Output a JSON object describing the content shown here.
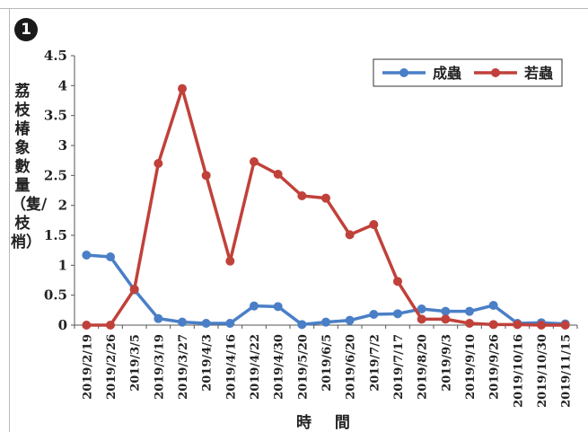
{
  "badge": "1",
  "chart_data": {
    "type": "line",
    "xlabel": "時 間",
    "ylabel": "荔枝椿象數量（隻/枝梢）",
    "ylim": [
      0,
      4.5
    ],
    "yticks": [
      "0",
      "0.5",
      "1",
      "1.5",
      "2",
      "2.5",
      "3",
      "3.5",
      "4",
      "4.5"
    ],
    "grid": false,
    "legend": "top-right",
    "categories": [
      "2019/2/19",
      "2019/2/26",
      "2019/3/5",
      "2019/3/19",
      "2019/3/27",
      "2019/4/3",
      "2019/4/16",
      "2019/4/22",
      "2019/4/30",
      "2019/5/20",
      "2019/6/5",
      "2019/6/20",
      "2019/7/2",
      "2019/7/17",
      "2019/8/20",
      "2019/9/3",
      "2019/9/10",
      "2019/9/26",
      "2019/10/16",
      "2019/10/30",
      "2019/11/15"
    ],
    "series": [
      {
        "name": "成蟲",
        "color": "#4a7fc7",
        "values": [
          1.17,
          1.14,
          0.59,
          0.11,
          0.05,
          0.03,
          0.03,
          0.32,
          0.31,
          0.01,
          0.05,
          0.08,
          0.18,
          0.19,
          0.27,
          0.23,
          0.23,
          0.33,
          0.03,
          0.04,
          0.02
        ]
      },
      {
        "name": "若蟲",
        "color": "#c0413a",
        "values": [
          0.0,
          0.0,
          0.6,
          2.7,
          3.95,
          2.5,
          1.07,
          2.73,
          2.52,
          2.16,
          2.12,
          1.51,
          1.68,
          0.73,
          0.1,
          0.1,
          0.03,
          0.01,
          0.01,
          0.0,
          0.0
        ]
      }
    ]
  }
}
